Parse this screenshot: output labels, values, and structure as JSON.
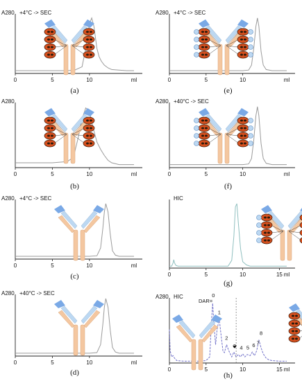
{
  "chart_data": [
    {
      "panel": "(a)",
      "type": "line",
      "ylabel": "A280",
      "label": "+4°C -> SEC",
      "ticks": [
        "0",
        "5",
        "10",
        "ml"
      ],
      "xlim": [
        0,
        16
      ],
      "molecule": "adc-loaded",
      "series": [
        {
          "color": "#9a9a9a",
          "x": [
            0,
            1,
            2,
            3,
            4,
            5,
            6,
            7,
            8,
            9,
            9.5,
            10,
            10.3,
            10.6,
            11,
            11.3,
            11.6,
            12,
            12.5,
            13,
            14,
            15,
            16
          ],
          "y": [
            0.05,
            0.05,
            0.05,
            0.05,
            0.05,
            0.05,
            0.05,
            0.05,
            0.06,
            0.12,
            0.45,
            0.9,
            1.0,
            0.85,
            0.45,
            0.3,
            0.22,
            0.15,
            0.1,
            0.07,
            0.06,
            0.05,
            0.05
          ]
        }
      ]
    },
    {
      "panel": "(b)",
      "type": "line",
      "ylabel": "A280",
      "label": "",
      "ticks": [
        "0",
        "5",
        "10",
        "ml"
      ],
      "xlim": [
        0,
        16
      ],
      "molecule": "adc-loaded",
      "series": [
        {
          "color": "#9a9a9a",
          "x": [
            0,
            1,
            2,
            3,
            4,
            5,
            6,
            7,
            7.5,
            8,
            8.5,
            9,
            9.5,
            10,
            10.5,
            11,
            11.5,
            12,
            12.5,
            13,
            14,
            15,
            16
          ],
          "y": [
            0.08,
            0.08,
            0.08,
            0.08,
            0.08,
            0.08,
            0.09,
            0.1,
            0.14,
            0.25,
            0.5,
            0.8,
            0.98,
            0.92,
            0.65,
            0.42,
            0.3,
            0.2,
            0.12,
            0.08,
            0.05,
            0.05,
            0.05
          ]
        }
      ]
    },
    {
      "panel": "(c)",
      "type": "line",
      "ylabel": "A280",
      "label": "+4°C -> SEC",
      "ticks": [
        "0",
        "5",
        "10",
        "ml"
      ],
      "xlim": [
        0,
        16
      ],
      "molecule": "antibody",
      "series": [
        {
          "color": "#9a9a9a",
          "x": [
            0,
            2,
            4,
            6,
            8,
            10,
            11,
            11.5,
            11.8,
            12,
            12.2,
            12.5,
            12.8,
            13.1,
            13.5,
            14,
            15,
            16
          ],
          "y": [
            0.05,
            0.05,
            0.05,
            0.05,
            0.05,
            0.05,
            0.06,
            0.2,
            0.55,
            0.85,
            1.0,
            0.85,
            0.45,
            0.15,
            0.07,
            0.05,
            0.05,
            0.05
          ]
        }
      ]
    },
    {
      "panel": "(d)",
      "type": "line",
      "ylabel": "A280",
      "label": "+40°C -> SEC",
      "ticks": [
        "0",
        "5",
        "10",
        "ml"
      ],
      "xlim": [
        0,
        16
      ],
      "molecule": "antibody",
      "series": [
        {
          "color": "#9a9a9a",
          "x": [
            0,
            2,
            4,
            6,
            8,
            10,
            11,
            11.5,
            11.8,
            12,
            12.2,
            12.5,
            12.8,
            13.1,
            13.5,
            14,
            15,
            16
          ],
          "y": [
            0.05,
            0.05,
            0.05,
            0.05,
            0.05,
            0.05,
            0.06,
            0.2,
            0.55,
            0.85,
            1.0,
            0.85,
            0.45,
            0.15,
            0.07,
            0.05,
            0.05,
            0.05
          ]
        }
      ]
    },
    {
      "panel": "(e)",
      "type": "line",
      "ylabel": "A280",
      "label": "+4°C -> SEC",
      "ticks": [
        "0",
        "5",
        "10",
        "ml"
      ],
      "xlim": [
        0,
        16
      ],
      "molecule": "adc-capped",
      "series": [
        {
          "color": "#9a9a9a",
          "x": [
            0,
            2,
            4,
            6,
            8,
            10,
            10.8,
            11.2,
            11.5,
            11.8,
            12,
            12.2,
            12.5,
            12.8,
            13.2,
            14,
            15,
            16
          ],
          "y": [
            0.05,
            0.05,
            0.05,
            0.05,
            0.05,
            0.05,
            0.06,
            0.15,
            0.45,
            0.85,
            1.0,
            0.85,
            0.4,
            0.15,
            0.07,
            0.05,
            0.05,
            0.05
          ]
        }
      ]
    },
    {
      "panel": "(f)",
      "type": "line",
      "ylabel": "A280",
      "label": "+40°C -> SEC",
      "ticks": [
        "0",
        "5",
        "10",
        "ml"
      ],
      "xlim": [
        0,
        16
      ],
      "molecule": "adc-capped",
      "series": [
        {
          "color": "#9a9a9a",
          "x": [
            0,
            2,
            4,
            6,
            8,
            10,
            10.8,
            11.2,
            11.5,
            11.8,
            12,
            12.2,
            12.5,
            12.8,
            13.2,
            14,
            15,
            16
          ],
          "y": [
            0.05,
            0.05,
            0.05,
            0.05,
            0.05,
            0.05,
            0.06,
            0.15,
            0.45,
            0.85,
            1.0,
            0.85,
            0.4,
            0.15,
            0.07,
            0.05,
            0.05,
            0.05
          ]
        }
      ]
    },
    {
      "panel": "(g)",
      "type": "line",
      "ylabel": "",
      "label": "HIC",
      "ticks": [
        "0",
        "5",
        "10",
        "15",
        "ml"
      ],
      "xlim": [
        0,
        16
      ],
      "molecule": "adc-capped-hic",
      "series": [
        {
          "color": "#8fbfbf",
          "x": [
            0,
            0.3,
            0.5,
            0.6,
            0.7,
            0.9,
            1.2,
            2,
            4,
            6,
            8,
            8.5,
            8.8,
            9,
            9.2,
            9.4,
            9.7,
            10,
            10.5,
            11,
            12,
            14,
            16
          ],
          "y": [
            0.03,
            0.03,
            0.08,
            0.13,
            0.08,
            0.04,
            0.03,
            0.03,
            0.03,
            0.03,
            0.03,
            0.12,
            0.5,
            0.95,
            1.0,
            0.7,
            0.3,
            0.1,
            0.05,
            0.03,
            0.03,
            0.03,
            0.03
          ]
        }
      ]
    },
    {
      "panel": "(h)",
      "type": "line",
      "ylabel": "A280",
      "label": "HIC",
      "ticks": [
        "0",
        "5",
        "10",
        "15",
        "ml"
      ],
      "xlim": [
        0,
        16
      ],
      "molecule": "adc-hic",
      "dar_label": "DAR=",
      "peak_labels": [
        "0",
        "1",
        "2",
        "3",
        "4",
        "5",
        "6",
        "7",
        "8"
      ],
      "series": [
        {
          "color": "#7070c8",
          "x": [
            0,
            0.1,
            0.3,
            0.5,
            0.7,
            1,
            2,
            3,
            4,
            5,
            5.5,
            5.7,
            5.9,
            6.1,
            6.3,
            6.5,
            6.8,
            7.1,
            7.3,
            7.5,
            7.8,
            8.1,
            8.5,
            8.8,
            9.1,
            9.4,
            9.7,
            10,
            10.3,
            10.6,
            11,
            11.3,
            11.6,
            11.9,
            12.2,
            12.5,
            12.8,
            13.2,
            13.6,
            14,
            15,
            16
          ],
          "y": [
            0.55,
            0.2,
            0.1,
            0.12,
            0.08,
            0.04,
            0.03,
            0.03,
            0.03,
            0.04,
            0.1,
            0.6,
            0.98,
            0.6,
            0.3,
            0.55,
            0.72,
            0.4,
            0.2,
            0.17,
            0.3,
            0.2,
            0.1,
            0.18,
            0.1,
            0.14,
            0.1,
            0.15,
            0.1,
            0.14,
            0.12,
            0.18,
            0.12,
            0.2,
            0.38,
            0.25,
            0.15,
            0.08,
            0.05,
            0.04,
            0.03,
            0.03
          ]
        }
      ]
    }
  ]
}
